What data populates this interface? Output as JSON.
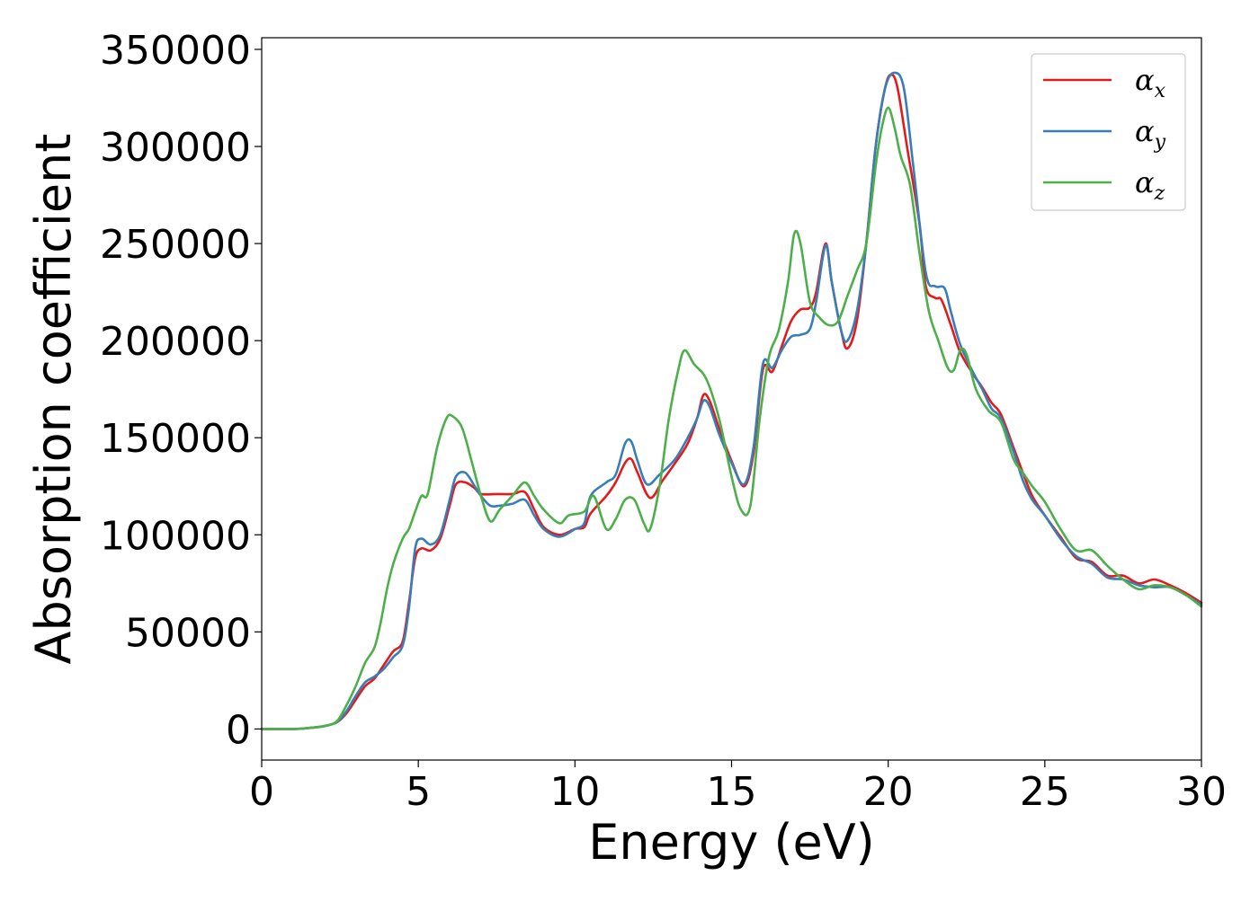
{
  "chart_data": {
    "type": "line",
    "title": "",
    "xlabel": "Energy (eV)",
    "ylabel": "Absorption coefficient",
    "xlim": [
      0,
      30
    ],
    "ylim": [
      -16000,
      356000
    ],
    "xticks": [
      0,
      5,
      10,
      15,
      20,
      25,
      30
    ],
    "xtick_labels": [
      "0",
      "5",
      "10",
      "15",
      "20",
      "25",
      "30"
    ],
    "yticks": [
      0,
      50000,
      100000,
      150000,
      200000,
      250000,
      300000,
      350000
    ],
    "ytick_labels": [
      "0",
      "50000",
      "100000",
      "150000",
      "200000",
      "250000",
      "300000",
      "350000"
    ],
    "grid": false,
    "legend_position": "top-right",
    "series": [
      {
        "name": "α",
        "subscript": "x",
        "color": "#e41a1c",
        "points": [
          [
            0,
            0
          ],
          [
            1,
            0
          ],
          [
            1.5,
            500
          ],
          [
            2,
            1500
          ],
          [
            2.4,
            3500
          ],
          [
            2.7,
            8000
          ],
          [
            3.0,
            15000
          ],
          [
            3.3,
            22000
          ],
          [
            3.6,
            26000
          ],
          [
            3.9,
            33000
          ],
          [
            4.2,
            40000
          ],
          [
            4.5,
            45000
          ],
          [
            4.7,
            65000
          ],
          [
            4.9,
            88000
          ],
          [
            5.1,
            93000
          ],
          [
            5.4,
            92000
          ],
          [
            5.7,
            98000
          ],
          [
            6.0,
            115000
          ],
          [
            6.2,
            126000
          ],
          [
            6.5,
            127000
          ],
          [
            6.8,
            124000
          ],
          [
            7.0,
            121000
          ],
          [
            7.5,
            121000
          ],
          [
            8.0,
            121000
          ],
          [
            8.4,
            122000
          ],
          [
            8.7,
            113000
          ],
          [
            9.0,
            104000
          ],
          [
            9.5,
            100000
          ],
          [
            10.0,
            103000
          ],
          [
            10.3,
            104000
          ],
          [
            10.5,
            111000
          ],
          [
            11.0,
            120000
          ],
          [
            11.3,
            127000
          ],
          [
            11.6,
            137000
          ],
          [
            11.8,
            139000
          ],
          [
            12.0,
            132000
          ],
          [
            12.4,
            119000
          ],
          [
            12.8,
            128000
          ],
          [
            13.2,
            137000
          ],
          [
            13.6,
            147000
          ],
          [
            13.9,
            160000
          ],
          [
            14.1,
            172000
          ],
          [
            14.3,
            169000
          ],
          [
            14.6,
            155000
          ],
          [
            15.0,
            138000
          ],
          [
            15.4,
            125000
          ],
          [
            15.7,
            142000
          ],
          [
            16.0,
            185000
          ],
          [
            16.3,
            184000
          ],
          [
            16.6,
            197000
          ],
          [
            16.9,
            210000
          ],
          [
            17.2,
            216000
          ],
          [
            17.5,
            217000
          ],
          [
            17.7,
            225000
          ],
          [
            18.0,
            250000
          ],
          [
            18.2,
            230000
          ],
          [
            18.5,
            205000
          ],
          [
            18.7,
            196000
          ],
          [
            19.0,
            210000
          ],
          [
            19.3,
            250000
          ],
          [
            19.6,
            300000
          ],
          [
            19.9,
            330000
          ],
          [
            20.1,
            337000
          ],
          [
            20.3,
            330000
          ],
          [
            20.6,
            300000
          ],
          [
            21.0,
            260000
          ],
          [
            21.2,
            228000
          ],
          [
            21.5,
            222000
          ],
          [
            21.7,
            221000
          ],
          [
            22.0,
            208000
          ],
          [
            22.3,
            194000
          ],
          [
            22.7,
            183000
          ],
          [
            23.0,
            176000
          ],
          [
            23.3,
            168000
          ],
          [
            23.6,
            162000
          ],
          [
            24.0,
            145000
          ],
          [
            24.3,
            132000
          ],
          [
            24.6,
            120000
          ],
          [
            25.0,
            110000
          ],
          [
            25.5,
            99000
          ],
          [
            26.0,
            88000
          ],
          [
            26.5,
            86000
          ],
          [
            27.0,
            79000
          ],
          [
            27.5,
            79000
          ],
          [
            28.0,
            75000
          ],
          [
            28.5,
            77000
          ],
          [
            29.0,
            74000
          ],
          [
            29.5,
            70000
          ],
          [
            30.0,
            65000
          ]
        ]
      },
      {
        "name": "α",
        "subscript": "y",
        "color": "#377eb8",
        "points": [
          [
            0,
            0
          ],
          [
            1,
            0
          ],
          [
            1.5,
            500
          ],
          [
            2,
            1500
          ],
          [
            2.4,
            3500
          ],
          [
            2.7,
            9000
          ],
          [
            3.0,
            17000
          ],
          [
            3.3,
            24000
          ],
          [
            3.6,
            27000
          ],
          [
            3.9,
            31000
          ],
          [
            4.2,
            37000
          ],
          [
            4.5,
            43000
          ],
          [
            4.7,
            62000
          ],
          [
            4.9,
            93000
          ],
          [
            5.1,
            98000
          ],
          [
            5.4,
            95000
          ],
          [
            5.7,
            100000
          ],
          [
            6.0,
            118000
          ],
          [
            6.2,
            130000
          ],
          [
            6.5,
            132000
          ],
          [
            6.8,
            125000
          ],
          [
            7.0,
            120000
          ],
          [
            7.3,
            115000
          ],
          [
            7.6,
            115000
          ],
          [
            8.0,
            116000
          ],
          [
            8.4,
            118000
          ],
          [
            8.7,
            110000
          ],
          [
            9.0,
            103000
          ],
          [
            9.5,
            99000
          ],
          [
            10.0,
            103000
          ],
          [
            10.3,
            106000
          ],
          [
            10.5,
            120000
          ],
          [
            11.0,
            127000
          ],
          [
            11.3,
            131000
          ],
          [
            11.6,
            147000
          ],
          [
            11.8,
            148000
          ],
          [
            12.0,
            138000
          ],
          [
            12.3,
            126000
          ],
          [
            12.7,
            131000
          ],
          [
            13.2,
            139000
          ],
          [
            13.6,
            150000
          ],
          [
            13.9,
            160000
          ],
          [
            14.1,
            169000
          ],
          [
            14.3,
            166000
          ],
          [
            14.6,
            152000
          ],
          [
            15.0,
            137000
          ],
          [
            15.4,
            126000
          ],
          [
            15.7,
            145000
          ],
          [
            16.0,
            188000
          ],
          [
            16.3,
            186000
          ],
          [
            16.6,
            195000
          ],
          [
            16.9,
            202000
          ],
          [
            17.2,
            203000
          ],
          [
            17.5,
            206000
          ],
          [
            17.7,
            220000
          ],
          [
            18.0,
            249000
          ],
          [
            18.2,
            230000
          ],
          [
            18.5,
            205000
          ],
          [
            18.7,
            200000
          ],
          [
            19.0,
            215000
          ],
          [
            19.3,
            250000
          ],
          [
            19.6,
            300000
          ],
          [
            19.9,
            330000
          ],
          [
            20.2,
            338000
          ],
          [
            20.5,
            330000
          ],
          [
            20.8,
            290000
          ],
          [
            21.2,
            235000
          ],
          [
            21.5,
            228000
          ],
          [
            21.8,
            227000
          ],
          [
            22.0,
            215000
          ],
          [
            22.3,
            198000
          ],
          [
            22.7,
            184000
          ],
          [
            23.0,
            175000
          ],
          [
            23.3,
            165000
          ],
          [
            23.6,
            160000
          ],
          [
            24.0,
            143000
          ],
          [
            24.3,
            128000
          ],
          [
            24.6,
            118000
          ],
          [
            25.0,
            110000
          ],
          [
            25.5,
            98000
          ],
          [
            26.0,
            89000
          ],
          [
            26.5,
            85000
          ],
          [
            27.0,
            78000
          ],
          [
            27.5,
            77000
          ],
          [
            28.0,
            74000
          ],
          [
            28.5,
            73000
          ],
          [
            29.0,
            73000
          ],
          [
            29.5,
            69000
          ],
          [
            30.0,
            64000
          ]
        ]
      },
      {
        "name": "α",
        "subscript": "z",
        "color": "#4daf4a",
        "points": [
          [
            0,
            0
          ],
          [
            1,
            0
          ],
          [
            1.5,
            500
          ],
          [
            2,
            1500
          ],
          [
            2.4,
            4000
          ],
          [
            2.7,
            12000
          ],
          [
            3.0,
            22000
          ],
          [
            3.3,
            34000
          ],
          [
            3.6,
            42000
          ],
          [
            3.8,
            55000
          ],
          [
            4.0,
            72000
          ],
          [
            4.2,
            85000
          ],
          [
            4.5,
            98000
          ],
          [
            4.7,
            103000
          ],
          [
            4.9,
            112000
          ],
          [
            5.1,
            120000
          ],
          [
            5.3,
            121000
          ],
          [
            5.6,
            145000
          ],
          [
            5.9,
            160000
          ],
          [
            6.1,
            161000
          ],
          [
            6.4,
            155000
          ],
          [
            6.7,
            138000
          ],
          [
            7.0,
            120000
          ],
          [
            7.3,
            107000
          ],
          [
            7.6,
            113000
          ],
          [
            8.0,
            120000
          ],
          [
            8.4,
            127000
          ],
          [
            8.7,
            120000
          ],
          [
            9.0,
            113000
          ],
          [
            9.5,
            106000
          ],
          [
            9.8,
            110000
          ],
          [
            10.3,
            112000
          ],
          [
            10.6,
            120000
          ],
          [
            11.0,
            103000
          ],
          [
            11.3,
            108000
          ],
          [
            11.6,
            118000
          ],
          [
            11.9,
            118000
          ],
          [
            12.2,
            106000
          ],
          [
            12.4,
            103000
          ],
          [
            12.7,
            125000
          ],
          [
            13.0,
            160000
          ],
          [
            13.3,
            185000
          ],
          [
            13.5,
            195000
          ],
          [
            13.8,
            188000
          ],
          [
            14.2,
            180000
          ],
          [
            14.6,
            160000
          ],
          [
            15.0,
            130000
          ],
          [
            15.3,
            113000
          ],
          [
            15.6,
            115000
          ],
          [
            15.9,
            160000
          ],
          [
            16.2,
            192000
          ],
          [
            16.5,
            205000
          ],
          [
            16.8,
            230000
          ],
          [
            17.0,
            255000
          ],
          [
            17.2,
            250000
          ],
          [
            17.5,
            220000
          ],
          [
            17.8,
            212000
          ],
          [
            18.1,
            208000
          ],
          [
            18.4,
            210000
          ],
          [
            18.7,
            223000
          ],
          [
            19.0,
            236000
          ],
          [
            19.3,
            250000
          ],
          [
            19.6,
            290000
          ],
          [
            19.8,
            310000
          ],
          [
            20.0,
            320000
          ],
          [
            20.2,
            310000
          ],
          [
            20.4,
            295000
          ],
          [
            20.7,
            280000
          ],
          [
            21.0,
            245000
          ],
          [
            21.3,
            215000
          ],
          [
            21.6,
            200000
          ],
          [
            21.9,
            186000
          ],
          [
            22.1,
            185000
          ],
          [
            22.3,
            195000
          ],
          [
            22.5,
            193000
          ],
          [
            22.8,
            175000
          ],
          [
            23.2,
            164000
          ],
          [
            23.6,
            158000
          ],
          [
            24.0,
            139000
          ],
          [
            24.3,
            132000
          ],
          [
            24.6,
            125000
          ],
          [
            25.0,
            117000
          ],
          [
            25.5,
            103000
          ],
          [
            26.0,
            92000
          ],
          [
            26.5,
            92000
          ],
          [
            27.0,
            84000
          ],
          [
            27.5,
            77000
          ],
          [
            28.0,
            72000
          ],
          [
            28.5,
            74000
          ],
          [
            29.0,
            73000
          ],
          [
            29.5,
            69000
          ],
          [
            30.0,
            63000
          ]
        ]
      }
    ]
  }
}
